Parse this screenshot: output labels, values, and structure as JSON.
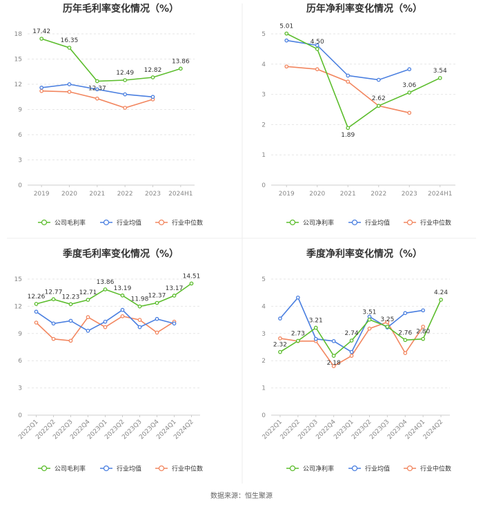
{
  "colors": {
    "company": "#5cbd2d",
    "industry_avg": "#4a7fe0",
    "industry_median": "#f2865f",
    "grid": "#e6e6e6",
    "divider": "#eeeeee"
  },
  "legend_markers": [
    "circle-marker",
    "circle-marker",
    "circle-marker"
  ],
  "source": "数据来源：恒生聚源",
  "chart_data": [
    {
      "type": "line",
      "title": "历年毛利率变化情况（%）",
      "categories": [
        "2019",
        "2020",
        "2021",
        "2022",
        "2023",
        "2024H1"
      ],
      "yticks": [
        0,
        3,
        6,
        9,
        12,
        15,
        18
      ],
      "ylim": [
        0,
        18
      ],
      "rotate_x": false,
      "series": [
        {
          "name": "公司毛利率",
          "key": "company",
          "values": [
            17.42,
            16.35,
            12.37,
            12.49,
            12.82,
            13.86
          ],
          "labels": [
            "17.42",
            "16.35",
            "12.37",
            "12.49",
            "12.82",
            "13.86"
          ]
        },
        {
          "name": "行业均值",
          "key": "industry_avg",
          "values": [
            11.6,
            12.0,
            11.4,
            10.8,
            10.5,
            null
          ]
        },
        {
          "name": "行业中位数",
          "key": "industry_median",
          "values": [
            11.2,
            11.1,
            10.3,
            9.2,
            10.2,
            null
          ]
        }
      ]
    },
    {
      "type": "line",
      "title": "历年净利率变化情况（%）",
      "categories": [
        "2019",
        "2020",
        "2021",
        "2022",
        "2023",
        "2024H1"
      ],
      "yticks": [
        0,
        1,
        2,
        3,
        4,
        5
      ],
      "ylim": [
        0,
        5
      ],
      "rotate_x": false,
      "series": [
        {
          "name": "公司净利率",
          "key": "company",
          "values": [
            5.01,
            4.5,
            1.89,
            2.62,
            3.06,
            3.54
          ],
          "labels": [
            "5.01",
            "4.50",
            "1.89",
            "2.62",
            "3.06",
            "3.54"
          ]
        },
        {
          "name": "行业均值",
          "key": "industry_avg",
          "values": [
            4.78,
            4.62,
            3.62,
            3.48,
            3.83,
            null
          ]
        },
        {
          "name": "行业中位数",
          "key": "industry_median",
          "values": [
            3.92,
            3.83,
            3.42,
            2.62,
            2.39,
            null
          ]
        }
      ]
    },
    {
      "type": "line",
      "title": "季度毛利率变化情况（%）",
      "categories": [
        "2022Q1",
        "2022Q2",
        "2022Q3",
        "2022Q4",
        "2023Q1",
        "2023Q2",
        "2023Q3",
        "2023Q4",
        "2024Q1",
        "2024Q2"
      ],
      "yticks": [
        0,
        3,
        6,
        9,
        12,
        15
      ],
      "ylim": [
        0,
        15
      ],
      "rotate_x": true,
      "series": [
        {
          "name": "公司毛利率",
          "key": "company",
          "values": [
            12.26,
            12.77,
            12.23,
            12.71,
            13.86,
            13.19,
            11.98,
            12.37,
            13.17,
            14.51
          ],
          "labels": [
            "12.26",
            "12.77",
            "12.23",
            "12.71",
            "13.86",
            "13.19",
            "11.98",
            "12.37",
            "13.17",
            "14.51"
          ]
        },
        {
          "name": "行业均值",
          "key": "industry_avg",
          "values": [
            11.4,
            10.1,
            10.4,
            9.3,
            10.3,
            11.6,
            9.7,
            10.6,
            10.1,
            null
          ]
        },
        {
          "name": "行业中位数",
          "key": "industry_median",
          "values": [
            10.2,
            8.4,
            8.2,
            10.8,
            9.7,
            10.9,
            10.5,
            9.1,
            10.3,
            null
          ]
        }
      ]
    },
    {
      "type": "line",
      "title": "季度净利率变化情况（%）",
      "categories": [
        "2022Q1",
        "2022Q2",
        "2022Q3",
        "2022Q4",
        "2023Q1",
        "2023Q2",
        "2023Q3",
        "2023Q4",
        "2024Q1",
        "2024Q2"
      ],
      "yticks": [
        0,
        1,
        2,
        3,
        4,
        5
      ],
      "ylim": [
        0,
        5
      ],
      "rotate_x": true,
      "series": [
        {
          "name": "公司净利率",
          "key": "company",
          "values": [
            2.32,
            2.73,
            3.21,
            2.18,
            2.74,
            3.51,
            3.25,
            2.76,
            2.8,
            4.24
          ],
          "labels": [
            "2.32",
            "2.73",
            "3.21",
            "2.18",
            "2.74",
            "3.51",
            "3.25",
            "2.76",
            "2.80",
            "4.24"
          ]
        },
        {
          "name": "行业均值",
          "key": "industry_avg",
          "values": [
            3.55,
            4.32,
            2.8,
            2.72,
            2.32,
            3.62,
            3.22,
            3.75,
            3.85,
            null
          ]
        },
        {
          "name": "行业中位数",
          "key": "industry_median",
          "values": [
            2.82,
            2.72,
            2.72,
            1.8,
            2.18,
            3.18,
            3.42,
            2.28,
            3.25,
            null
          ]
        }
      ]
    }
  ]
}
